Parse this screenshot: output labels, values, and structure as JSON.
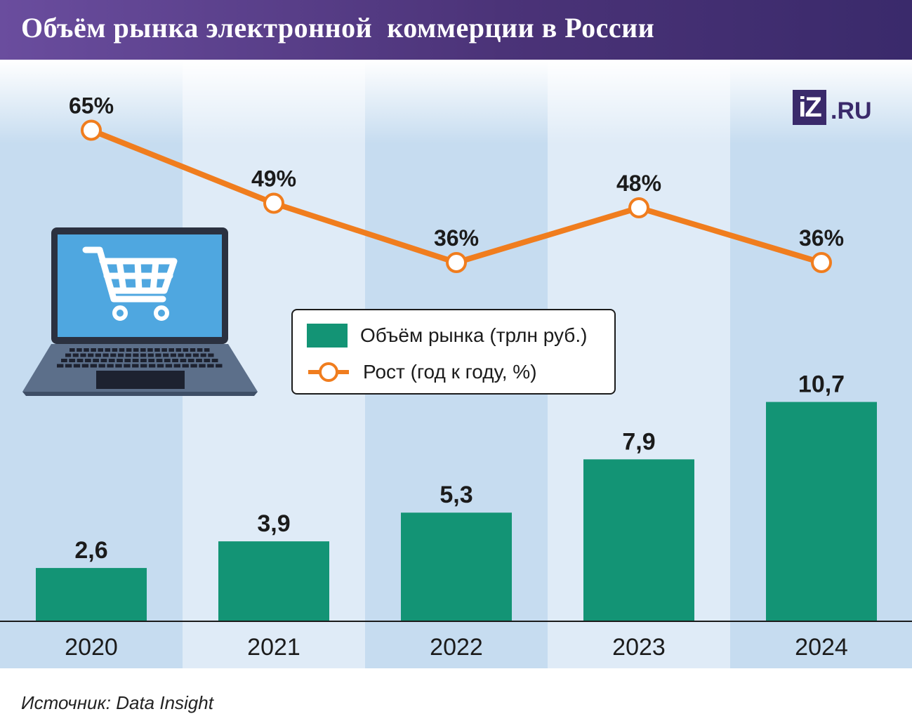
{
  "header": {
    "title": "Объём рынка электронной  коммерции в России"
  },
  "logo": {
    "box_text": "iZ",
    "suffix": ".RU"
  },
  "legend": {
    "bar_label": "Объём рынка (трлн руб.)",
    "line_label": "Рост (год к году, %)"
  },
  "source": {
    "text": "Источник: Data Insight"
  },
  "colors": {
    "bar": "#139475",
    "line": "#f07d1e",
    "header": "#4b3378",
    "band_dark": "#c6dcf0",
    "band_light": "#dfebf7"
  },
  "icons": {
    "illustration": "laptop-cart-icon"
  },
  "chart_data": {
    "type": "bar",
    "categories": [
      "2020",
      "2021",
      "2022",
      "2023",
      "2024"
    ],
    "series": [
      {
        "name": "Объём рынка (трлн руб.)",
        "type": "bar",
        "values": [
          2.6,
          3.9,
          5.3,
          7.9,
          10.7
        ],
        "labels": [
          "2,6",
          "3,9",
          "5,3",
          "7,9",
          "10,7"
        ]
      },
      {
        "name": "Рост (год к году, %)",
        "type": "line",
        "values": [
          65,
          49,
          36,
          48,
          36
        ],
        "labels": [
          "65%",
          "49%",
          "36%",
          "48%",
          "36%"
        ]
      }
    ],
    "title": "Объём рынка электронной  коммерции в России",
    "xlabel": "",
    "ylabel": "",
    "grid": false,
    "legend_position": "center"
  }
}
